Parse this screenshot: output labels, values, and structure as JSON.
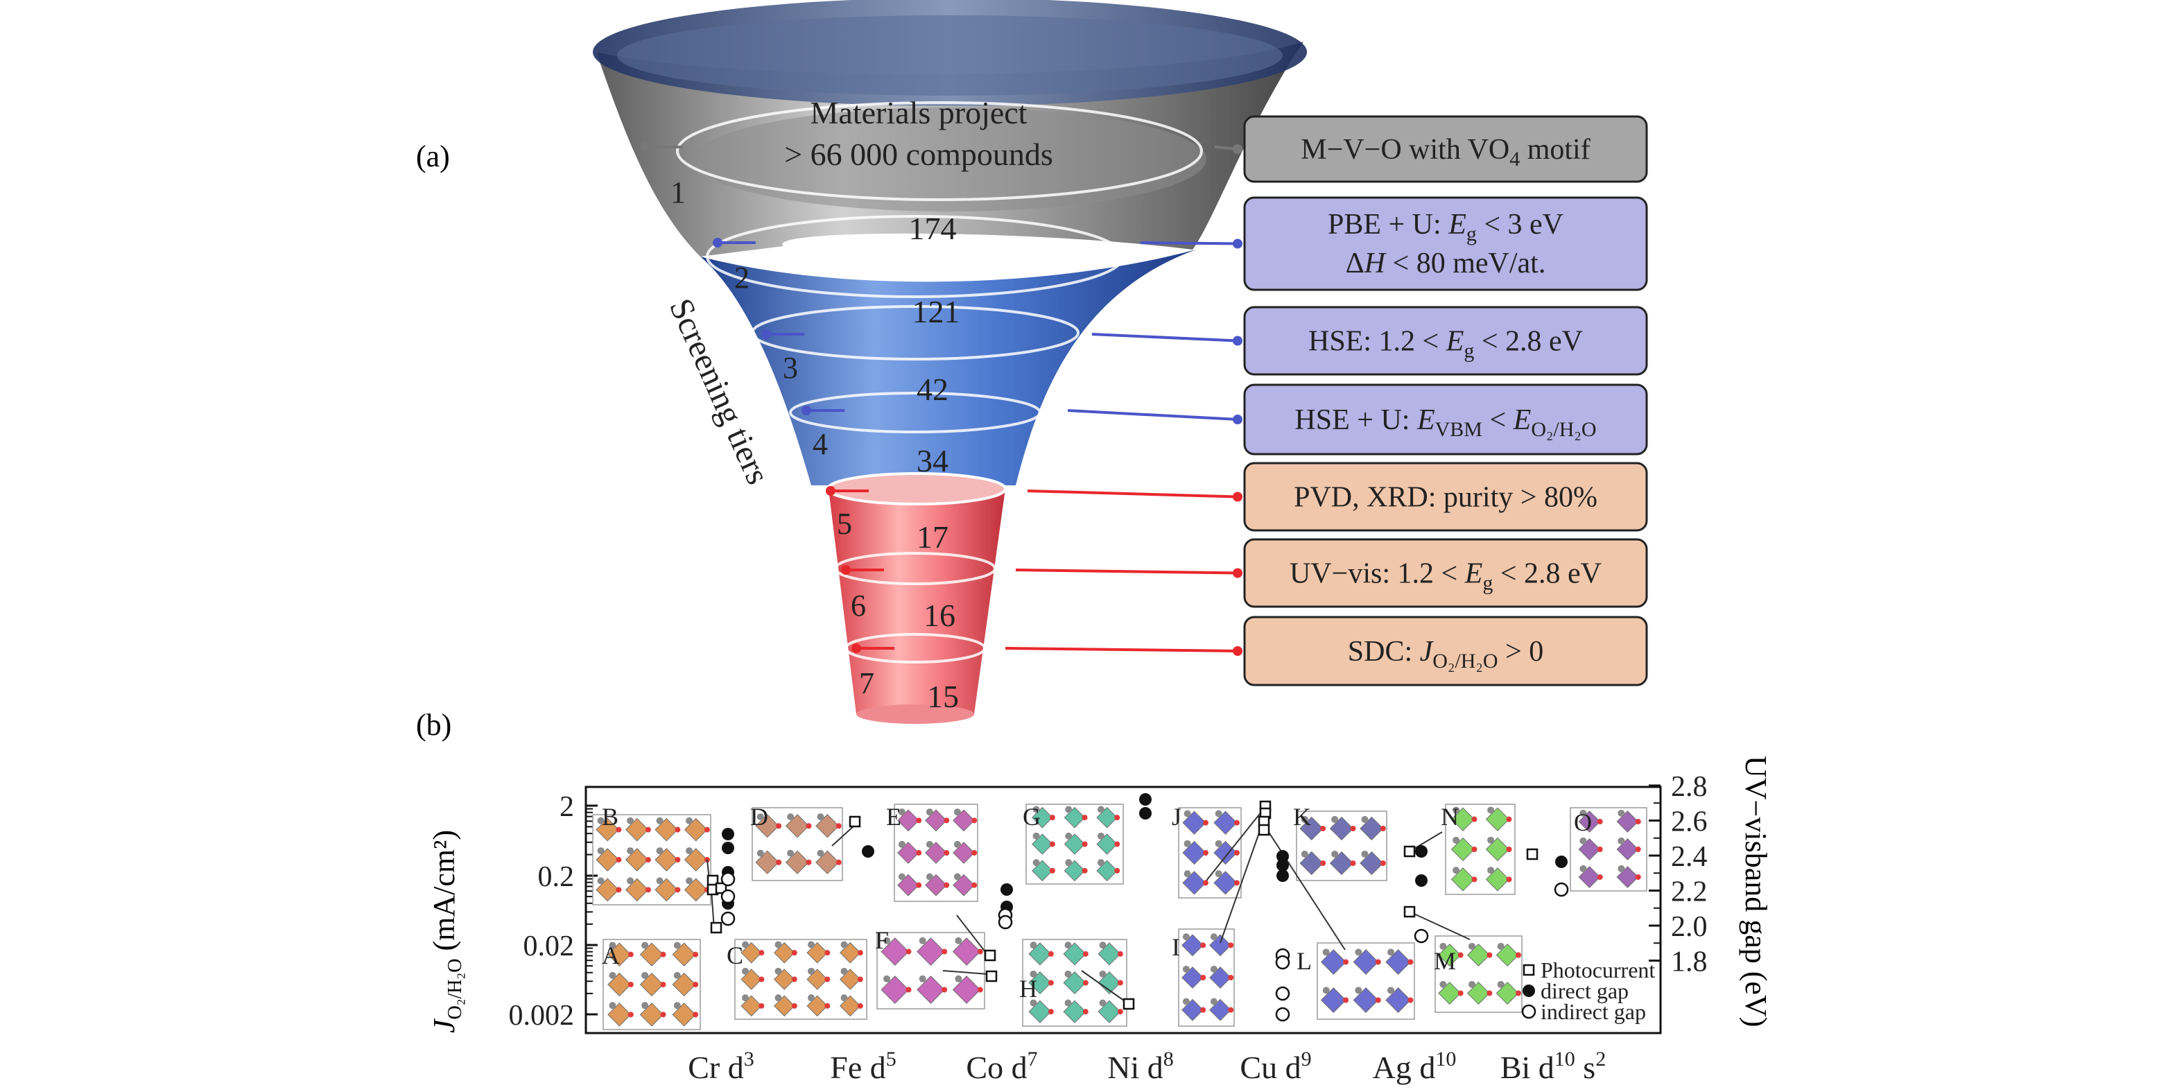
{
  "panel_a": {
    "label": "(a)",
    "top_text": [
      "Materials project",
      "> 66 000 compounds"
    ],
    "counts": [
      "174",
      "121",
      "42",
      "34",
      "17",
      "16",
      "15"
    ],
    "tiers": [
      "1",
      "2",
      "3",
      "4",
      "5",
      "6",
      "7"
    ],
    "side_label": "Screening tiers",
    "criteria": [
      {
        "color": "gray",
        "parts": [
          {
            "t": "M−V−O with VO"
          },
          {
            "t": "4",
            "s": "sub"
          },
          {
            "t": " motif"
          }
        ]
      },
      {
        "color": "blue",
        "parts": [
          {
            "t": "PBE + U: "
          },
          {
            "t": "E",
            "s": "it"
          },
          {
            "t": "g",
            "s": "sub"
          },
          {
            "t": " < 3 eV"
          }
        ],
        "line2": [
          {
            "t": "Δ"
          },
          {
            "t": "H",
            "s": "it"
          },
          {
            "t": " < 80 meV/at."
          }
        ]
      },
      {
        "color": "blue",
        "parts": [
          {
            "t": "HSE: 1.2 < "
          },
          {
            "t": "E",
            "s": "it"
          },
          {
            "t": "g",
            "s": "sub"
          },
          {
            "t": " < 2.8 eV"
          }
        ]
      },
      {
        "color": "blue",
        "parts": [
          {
            "t": "HSE + U: "
          },
          {
            "t": "E",
            "s": "it"
          },
          {
            "t": "VBM",
            "s": "sub"
          },
          {
            "t": " < "
          },
          {
            "t": "E",
            "s": "it"
          },
          {
            "t": "O₂/H₂O",
            "s": "sub"
          }
        ]
      },
      {
        "color": "red",
        "parts": [
          {
            "t": "PVD, XRD: purity > 80%"
          }
        ]
      },
      {
        "color": "red",
        "parts": [
          {
            "t": "UV−vis: 1.2 < "
          },
          {
            "t": "E",
            "s": "it"
          },
          {
            "t": "g",
            "s": "sub"
          },
          {
            "t": " < 2.8 eV"
          }
        ]
      },
      {
        "color": "red",
        "parts": [
          {
            "t": "SDC: "
          },
          {
            "t": "J",
            "s": "it"
          },
          {
            "t": "O₂/H₂O",
            "s": "sub"
          },
          {
            "t": " > 0"
          }
        ]
      }
    ],
    "colors": {
      "gray_fill": "#a6a6a6",
      "blue_fill": "#b6b3e6",
      "red_fill": "#f1c7ab",
      "blue_line": "#4a55c8",
      "red_line": "#e8272c",
      "gray_line": "#777777"
    }
  },
  "panel_b": {
    "label": "(b)",
    "ylabel_left": "J",
    "ylabel_left_sub": "O₂/H₂O",
    "ylabel_left_unit": " (mA/cm²)",
    "ylabel_right": "UV−visband gap (eV)",
    "left_ticks": [
      "2",
      "0.2",
      "0.02",
      "0.002"
    ],
    "right_ticks": [
      "2.8",
      "2.6",
      "2.4",
      "2.2",
      "2.0",
      "1.8"
    ],
    "x_groups": [
      {
        "base": "Cr d",
        "sup": "3"
      },
      {
        "base": "Fe d",
        "sup": "5"
      },
      {
        "base": "Co d",
        "sup": "7"
      },
      {
        "base": "Ni d",
        "sup": "8"
      },
      {
        "base": "Cu d",
        "sup": "9"
      },
      {
        "base": "Ag d",
        "sup": "10"
      },
      {
        "base": "Bi d",
        "sup": "10",
        "tail": " s",
        "tail_sup": "2"
      }
    ],
    "structure_labels": [
      "B",
      "A",
      "C",
      "D",
      "E",
      "F",
      "G",
      "H",
      "J",
      "I",
      "K",
      "L",
      "N",
      "M",
      "O"
    ],
    "legend": [
      "Photocurrent",
      "direct gap",
      "indirect gap"
    ],
    "markers": {
      "photocurrent": [
        [
          1028,
          1270
        ],
        [
          1028,
          1283
        ],
        [
          1040,
          1281
        ],
        [
          1033,
          1338
        ],
        [
          1233,
          1185
        ],
        [
          1428,
          1378
        ],
        [
          1430,
          1408
        ],
        [
          1628,
          1448
        ],
        [
          1825,
          1163
        ],
        [
          1825,
          1173
        ],
        [
          1823,
          1185
        ],
        [
          1823,
          1197
        ],
        [
          2033,
          1228
        ],
        [
          2033,
          1315
        ],
        [
          2210,
          1232
        ]
      ],
      "direct": [
        [
          1050,
          1203
        ],
        [
          1050,
          1223
        ],
        [
          1050,
          1258
        ],
        [
          1050,
          1303
        ],
        [
          1252,
          1228
        ],
        [
          1452,
          1283
        ],
        [
          1452,
          1308
        ],
        [
          1652,
          1153
        ],
        [
          1652,
          1173
        ],
        [
          1850,
          1235
        ],
        [
          1850,
          1248
        ],
        [
          1850,
          1263
        ],
        [
          2050,
          1228
        ],
        [
          2050,
          1270
        ],
        [
          2252,
          1243
        ]
      ],
      "indirect": [
        [
          1050,
          1268
        ],
        [
          1050,
          1293
        ],
        [
          1050,
          1325
        ],
        [
          1450,
          1320
        ],
        [
          1450,
          1330
        ],
        [
          1850,
          1378
        ],
        [
          1850,
          1388
        ],
        [
          1850,
          1433
        ],
        [
          1850,
          1463
        ],
        [
          2050,
          1350
        ],
        [
          2252,
          1283
        ]
      ]
    }
  }
}
